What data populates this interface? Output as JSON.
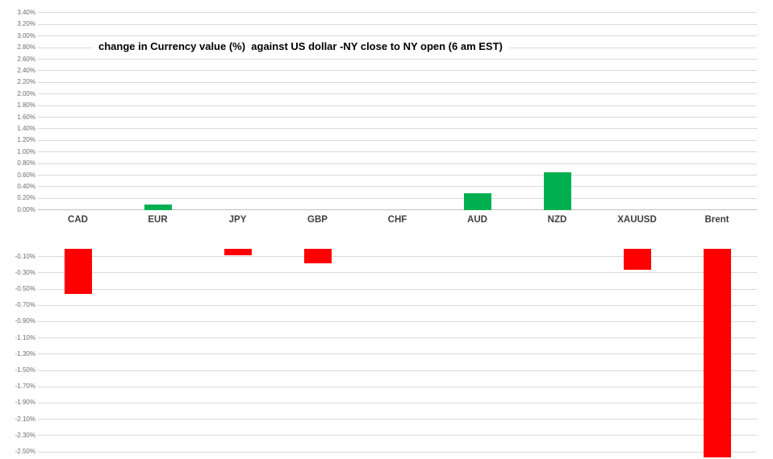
{
  "title": "change in Currency value (%)  against US dollar -NY close to NY open (6 am EST)",
  "colors": {
    "positive_bar": "#00B050",
    "negative_bar": "#FF0000",
    "gridline": "#D9D9D9",
    "zero_axis_line": "#BFBFBF",
    "tick_label": "#6E6E6E",
    "category_label": "#3F3F3F",
    "title_color": "#000000",
    "background": "#FFFFFF"
  },
  "chart_data": {
    "type": "bar",
    "title": "change in Currency value (%)  against US dollar -NY close to NY open (6 am EST)",
    "categories": [
      "CAD",
      "EUR",
      "JPY",
      "GBP",
      "CHF",
      "AUD",
      "NZD",
      "XAUUSD",
      "Brent"
    ],
    "values": [
      -0.56,
      0.1,
      -0.08,
      -0.18,
      0.0,
      0.29,
      0.65,
      -0.26,
      -2.57
    ],
    "value_unit": "percent",
    "grid": true,
    "legend": false,
    "y_axis": {
      "positive_ticks": [
        "3.40%",
        "3.20%",
        "3.00%",
        "2.80%",
        "2.60%",
        "2.40%",
        "2.20%",
        "2.00%",
        "1.80%",
        "1.60%",
        "1.40%",
        "1.20%",
        "1.00%",
        "0.80%",
        "0.60%",
        "0.40%",
        "0.20%",
        "0.00%"
      ],
      "negative_ticks": [
        "-0.10%",
        "-0.30%",
        "-0.50%",
        "-0.70%",
        "-0.90%",
        "-1.10%",
        "-1.30%",
        "-1.50%",
        "-1.70%",
        "-1.90%",
        "-2.10%",
        "-2.30%",
        "-2.50%"
      ],
      "positive_range": [
        0.0,
        3.4
      ],
      "negative_range": [
        -2.57,
        -0.1
      ],
      "layout_note": "split axis: positive and negative values rendered in separate panels with different scales; category labels sit in a band between the panels"
    }
  }
}
